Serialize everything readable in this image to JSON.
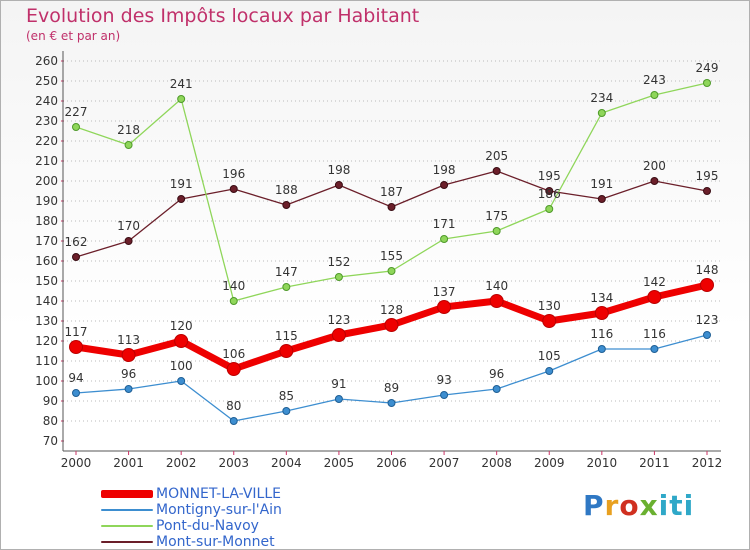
{
  "title": "Evolution des Impôts locaux par Habitant",
  "subtitle": "(en € et par an)",
  "logo": "Proxiti",
  "chart_data": {
    "type": "line",
    "x": [
      "2000",
      "2001",
      "2002",
      "2003",
      "2004",
      "2005",
      "2006",
      "2007",
      "2008",
      "2009",
      "2010",
      "2011",
      "2012"
    ],
    "ylim": [
      70,
      260
    ],
    "ytick_step": 10,
    "grid": "horizontal dotted",
    "legend_placement": "bottom-left",
    "series": [
      {
        "name": "MONNET-LA-VILLE",
        "color": "#ee0000",
        "values": [
          117,
          113,
          120,
          106,
          115,
          123,
          128,
          137,
          140,
          130,
          134,
          142,
          148
        ]
      },
      {
        "name": "Montigny-sur-l'Ain",
        "color": "#3d8ed0",
        "values": [
          94,
          96,
          100,
          80,
          85,
          91,
          89,
          93,
          96,
          105,
          116,
          116,
          123
        ]
      },
      {
        "name": "Pont-du-Navoy",
        "color": "#8fd65a",
        "values": [
          227,
          218,
          241,
          140,
          147,
          152,
          155,
          171,
          175,
          186,
          234,
          243,
          249
        ]
      },
      {
        "name": "Mont-sur-Monnet",
        "color": "#6b1f2a",
        "values": [
          162,
          170,
          191,
          196,
          188,
          198,
          187,
          198,
          205,
          195,
          191,
          200,
          195
        ]
      }
    ]
  }
}
